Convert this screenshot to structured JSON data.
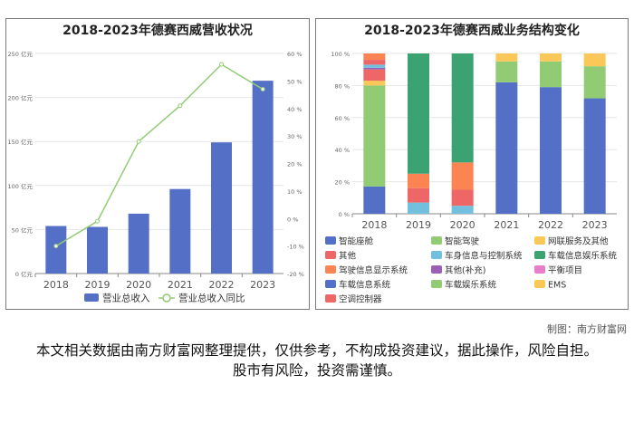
{
  "credit": "制图：南方财富网",
  "disclaimer": "本文相关数据由南方财富网整理提供，仅供参考，不构成投资建议，据此操作，风险自担。股市有风险，投资需谨慎。",
  "chart_data": [
    {
      "type": "bar",
      "title": "2018-2023年德赛西威营收状况",
      "categories": [
        "2018",
        "2019",
        "2020",
        "2021",
        "2022",
        "2023"
      ],
      "left_axis": {
        "ticks": [
          "0 亿元",
          "50 亿元",
          "100 亿元",
          "150 亿元",
          "200 亿元",
          "250 亿元"
        ],
        "ylim": [
          0,
          250
        ]
      },
      "right_axis": {
        "ticks": [
          "-20 %",
          "-10 %",
          "0 %",
          "10 %",
          "20 %",
          "30 %",
          "40 %",
          "50 %",
          "60 %"
        ],
        "ylim": [
          -20,
          60
        ]
      },
      "series": [
        {
          "name": "营业总收入",
          "kind": "bar",
          "axis": "left",
          "color": "#5470c6",
          "values": [
            54,
            53,
            68,
            96,
            149,
            219
          ]
        },
        {
          "name": "营业总收入同比",
          "kind": "line",
          "axis": "right",
          "color": "#91cc75",
          "values": [
            -10,
            -1,
            28,
            41,
            56,
            47
          ]
        }
      ],
      "grid": true
    },
    {
      "type": "bar",
      "stacked": true,
      "title": "2018-2023年德赛西威业务结构变化",
      "categories": [
        "2018",
        "2019",
        "2020",
        "2021",
        "2022",
        "2023"
      ],
      "y_ticks": [
        "0 %",
        "20 %",
        "40 %",
        "60 %",
        "80 %",
        "100 %"
      ],
      "ylim": [
        0,
        100
      ],
      "series": [
        {
          "name": "智能座舱",
          "color": "#5470c6",
          "values": [
            0,
            0,
            0,
            82,
            79,
            72
          ]
        },
        {
          "name": "智能驾驶",
          "color": "#91cc75",
          "values": [
            0,
            0,
            0,
            13,
            16,
            20
          ]
        },
        {
          "name": "网联服务及其他",
          "color": "#fac858",
          "values": [
            0,
            0,
            0,
            5,
            5,
            8
          ]
        },
        {
          "name": "其他",
          "color": "#ee6666",
          "values": [
            3,
            9,
            10,
            0,
            0,
            0
          ]
        },
        {
          "name": "车身信息与控制系统",
          "color": "#73c0de",
          "values": [
            2,
            7,
            5,
            0,
            0,
            0
          ]
        },
        {
          "name": "车载信息娱乐系统",
          "color": "#3ba272",
          "values": [
            0,
            75,
            68,
            0,
            0,
            0
          ]
        },
        {
          "name": "驾驶信息显示系统",
          "color": "#fc8452",
          "values": [
            4,
            9,
            17,
            0,
            0,
            0
          ]
        },
        {
          "name": "其他(补充)",
          "color": "#9a60b4",
          "values": [
            1,
            0,
            0,
            0,
            0,
            0
          ]
        },
        {
          "name": "平衡项目",
          "color": "#ea7ccc",
          "values": [
            0,
            0,
            0,
            0,
            0,
            0
          ]
        },
        {
          "name": "车载信息系统",
          "color": "#5470c6",
          "values": [
            17,
            0,
            0,
            0,
            0,
            0
          ]
        },
        {
          "name": "车载娱乐系统",
          "color": "#91cc75",
          "values": [
            63,
            0,
            0,
            0,
            0,
            0
          ]
        },
        {
          "name": "EMS",
          "color": "#fac858",
          "values": [
            3,
            0,
            0,
            0,
            0,
            0
          ]
        },
        {
          "name": "空调控制器",
          "color": "#ee6666",
          "values": [
            7,
            0,
            0,
            0,
            0,
            0
          ]
        }
      ],
      "legend_columns": 3,
      "grid": true
    }
  ]
}
